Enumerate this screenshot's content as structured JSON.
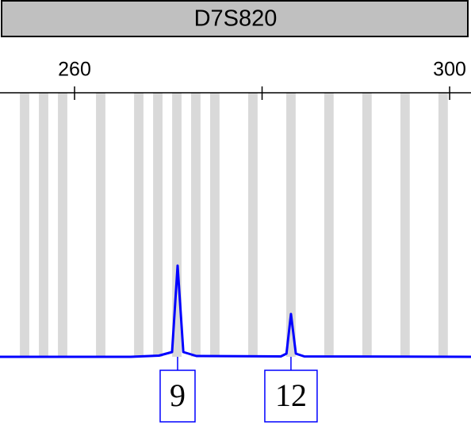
{
  "chart_data": {
    "type": "electropherogram",
    "title": "D7S820",
    "xlim": [
      252.05,
      302.28
    ],
    "xticks": [
      260,
      {
        "value": 280,
        "label": null
      },
      300
    ],
    "ylim": [
      0,
      3300
    ],
    "bin_width": 1,
    "bin_color": "#d9d9d9",
    "bins": [
      254.67,
      256.7,
      258.73,
      262.79,
      266.85,
      268.88,
      270.91,
      272.93,
      274.96,
      279.02,
      283.08,
      287.13,
      291.19,
      295.25,
      299.31
    ],
    "trace": {
      "color": "#0000ff",
      "x": [
        252.05,
        266,
        269,
        270.4,
        270.99,
        271.6,
        273,
        282,
        282.6,
        283.08,
        283.6,
        284.5,
        302.28
      ],
      "values": [
        0,
        0,
        15,
        60,
        1150,
        60,
        10,
        5,
        40,
        540,
        40,
        5,
        0
      ]
    },
    "allele_calls": [
      {
        "label": "9",
        "x": 270.99
      },
      {
        "label": "12",
        "x": 283.08
      }
    ]
  }
}
